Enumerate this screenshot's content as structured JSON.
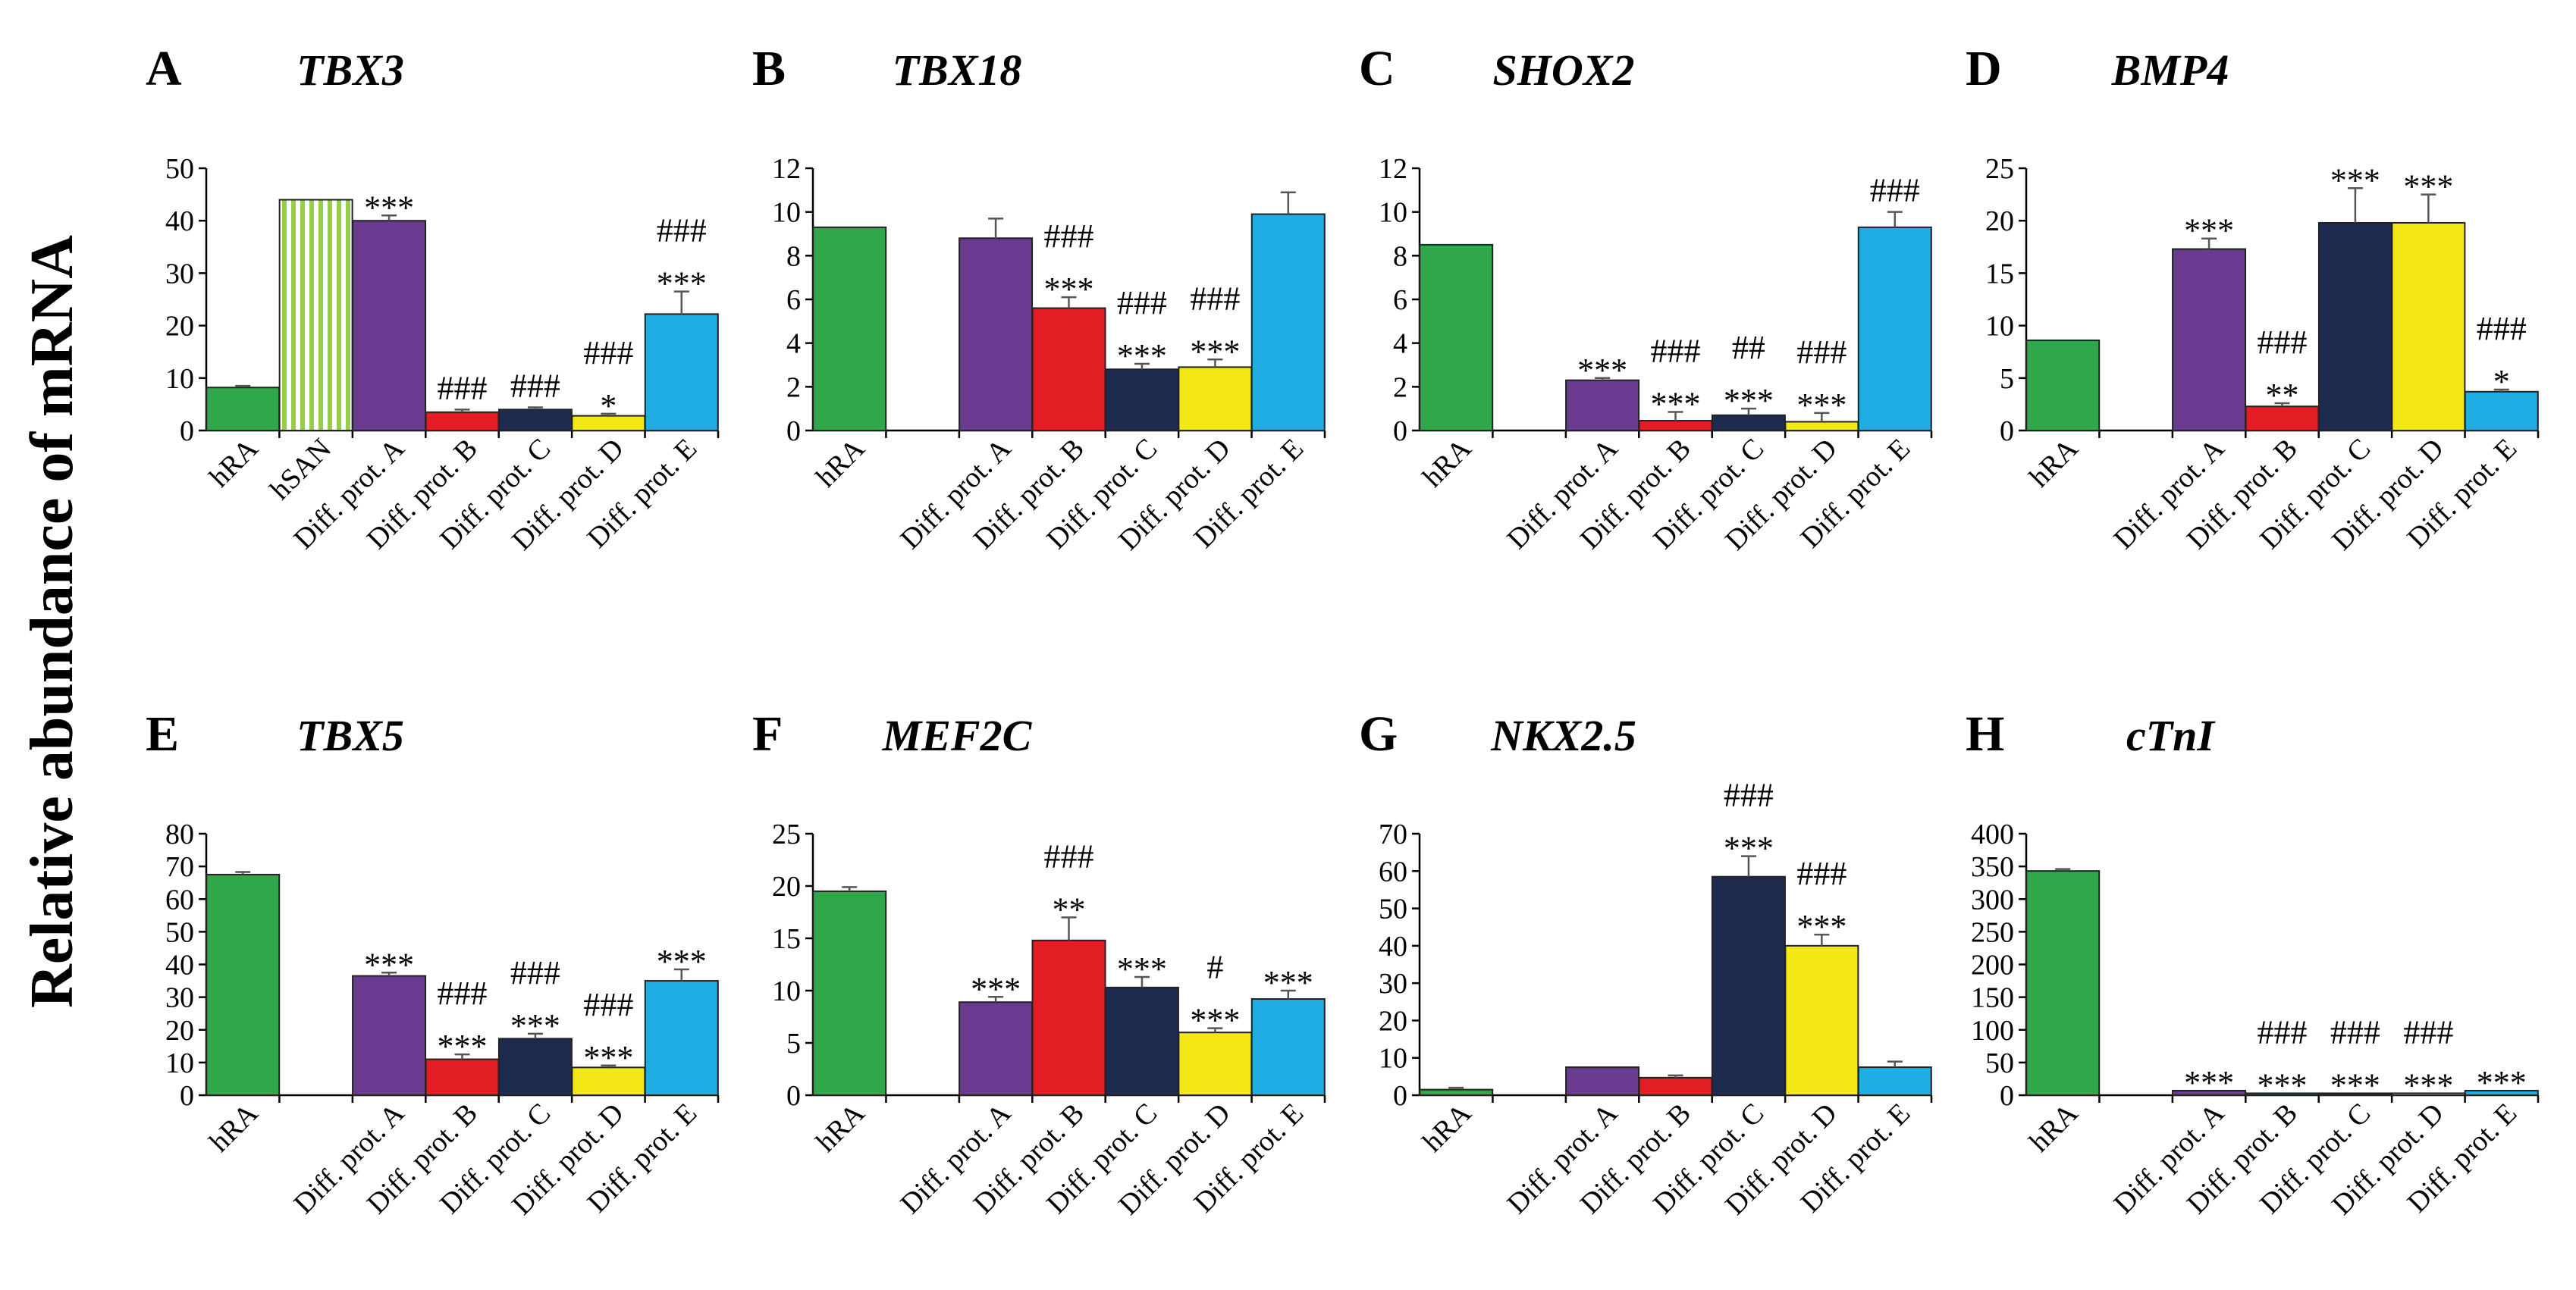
{
  "figure": {
    "y_axis_label": "Relative abundance of mRNA"
  },
  "colors": {
    "hRA": "#2ea84a",
    "hSAN_stripe": "#9acd46",
    "Diff. prot. A": "#683a90",
    "Diff. prot. B": "#e31d24",
    "Diff. prot. C": "#1f2a4f",
    "Diff. prot. D": "#f3e815",
    "Diff. prot. E": "#1fade4"
  },
  "chart_data": [
    {
      "type": "bar",
      "panel": "A",
      "title": "TBX3",
      "categories": [
        "hRA",
        "hSAN",
        "Diff. prot. A",
        "Diff. prot. B",
        "Diff. prot. C",
        "Diff. prot. D",
        "Diff. prot. E"
      ],
      "values": [
        8.2,
        44,
        40,
        3.5,
        4,
        2.8,
        22.2
      ],
      "errors": [
        0.3,
        0,
        1,
        0.5,
        0.4,
        0.4,
        4.3
      ],
      "annotations": [
        [],
        [],
        [
          "***"
        ],
        [
          "###"
        ],
        [
          "###"
        ],
        [
          "###",
          "*"
        ],
        [
          "###",
          "***"
        ]
      ],
      "ylim": [
        0,
        50
      ],
      "yticks": [
        0,
        10,
        20,
        30,
        40,
        50
      ],
      "xlabel": "",
      "ylabel": ""
    },
    {
      "type": "bar",
      "panel": "B",
      "title": "TBX18",
      "categories": [
        "hRA",
        "",
        "Diff. prot. A",
        "Diff. prot. B",
        "Diff. prot. C",
        "Diff. prot. D",
        "Diff. prot. E"
      ],
      "values": [
        9.3,
        null,
        8.8,
        5.6,
        2.8,
        2.9,
        9.9
      ],
      "errors": [
        0,
        0,
        0.9,
        0.5,
        0.25,
        0.35,
        1
      ],
      "annotations": [
        [],
        [],
        [],
        [
          "###",
          "***"
        ],
        [
          "###",
          "***"
        ],
        [
          "###",
          "***"
        ],
        []
      ],
      "ylim": [
        0,
        12
      ],
      "yticks": [
        0,
        2,
        4,
        6,
        8,
        10,
        12
      ],
      "xlabel": "",
      "ylabel": ""
    },
    {
      "type": "bar",
      "panel": "C",
      "title": "SHOX2",
      "categories": [
        "hRA",
        "",
        "Diff. prot. A",
        "Diff. prot. B",
        "Diff. prot. C",
        "Diff. prot. D",
        "Diff. prot. E"
      ],
      "values": [
        8.5,
        null,
        2.3,
        0.45,
        0.7,
        0.4,
        9.3
      ],
      "errors": [
        0,
        0,
        0.1,
        0.4,
        0.3,
        0.4,
        0.7
      ],
      "annotations": [
        [],
        [],
        [
          "***"
        ],
        [
          "###",
          "***"
        ],
        [
          "##",
          "***"
        ],
        [
          "###",
          "***"
        ],
        [
          "###"
        ]
      ],
      "ylim": [
        0,
        12
      ],
      "yticks": [
        0,
        2,
        4,
        6,
        8,
        10,
        12
      ],
      "xlabel": "",
      "ylabel": ""
    },
    {
      "type": "bar",
      "panel": "D",
      "title": "BMP4",
      "categories": [
        "hRA",
        "",
        "Diff. prot. A",
        "Diff. prot. B",
        "Diff. prot. C",
        "Diff. prot. D",
        "Diff. prot. E"
      ],
      "values": [
        8.6,
        null,
        17.3,
        2.3,
        19.8,
        19.8,
        3.7
      ],
      "errors": [
        0,
        0,
        1,
        0.3,
        3.3,
        2.7,
        0.2
      ],
      "annotations": [
        [],
        [],
        [
          "***"
        ],
        [
          "###",
          "**"
        ],
        [
          "***"
        ],
        [
          "***"
        ],
        [
          "###",
          "*"
        ]
      ],
      "ylim": [
        0,
        25
      ],
      "yticks": [
        0,
        5,
        10,
        15,
        20,
        25
      ],
      "xlabel": "",
      "ylabel": ""
    },
    {
      "type": "bar",
      "panel": "E",
      "title": "TBX5",
      "categories": [
        "hRA",
        "",
        "Diff. prot. A",
        "Diff. prot. B",
        "Diff. prot. C",
        "Diff. prot. D",
        "Diff. prot. E"
      ],
      "values": [
        67.5,
        null,
        36.5,
        11,
        17.3,
        8.5,
        35
      ],
      "errors": [
        0.8,
        0,
        1,
        1.5,
        1.5,
        0.6,
        3.5
      ],
      "annotations": [
        [],
        [],
        [
          "***"
        ],
        [
          "###",
          "***"
        ],
        [
          "###",
          "***"
        ],
        [
          "###",
          "***"
        ],
        [
          "***"
        ]
      ],
      "ylim": [
        0,
        80
      ],
      "yticks": [
        0,
        10,
        20,
        30,
        40,
        50,
        60,
        70,
        80
      ],
      "xlabel": "",
      "ylabel": ""
    },
    {
      "type": "bar",
      "panel": "F",
      "title": "MEF2C",
      "categories": [
        "hRA",
        "",
        "Diff. prot. A",
        "Diff. prot. B",
        "Diff. prot. C",
        "Diff. prot. D",
        "Diff. prot. E"
      ],
      "values": [
        19.5,
        null,
        8.9,
        14.8,
        10.3,
        6,
        9.2
      ],
      "errors": [
        0.4,
        0,
        0.5,
        2.2,
        1,
        0.4,
        0.8
      ],
      "annotations": [
        [],
        [],
        [
          "***"
        ],
        [
          "###",
          "**"
        ],
        [
          "***"
        ],
        [
          "#",
          "***"
        ],
        [
          "***"
        ]
      ],
      "ylim": [
        0,
        25
      ],
      "yticks": [
        0,
        5,
        10,
        15,
        20,
        25
      ],
      "xlabel": "",
      "ylabel": ""
    },
    {
      "type": "bar",
      "panel": "G",
      "title": "NKX2.5",
      "categories": [
        "hRA",
        "",
        "Diff. prot. A",
        "Diff. prot. B",
        "Diff. prot. C",
        "Diff. prot. D",
        "Diff. prot. E"
      ],
      "values": [
        1.5,
        null,
        7.5,
        4.7,
        58.5,
        40,
        7.5
      ],
      "errors": [
        0.5,
        0,
        0,
        0.6,
        5.5,
        3,
        1.5
      ],
      "annotations": [
        [],
        [],
        [],
        [],
        [
          "###",
          "***"
        ],
        [
          "###",
          "***"
        ],
        []
      ],
      "ylim": [
        0,
        70
      ],
      "yticks": [
        0,
        10,
        20,
        30,
        40,
        50,
        60,
        70
      ],
      "xlabel": "",
      "ylabel": ""
    },
    {
      "type": "bar",
      "panel": "H",
      "title": "cTnI",
      "categories": [
        "hRA",
        "",
        "Diff. prot. A",
        "Diff. prot. B",
        "Diff. prot. C",
        "Diff. prot. D",
        "Diff. prot. E"
      ],
      "values": [
        343,
        null,
        7,
        3,
        3,
        3,
        7
      ],
      "errors": [
        3,
        0,
        0,
        0,
        0,
        0,
        0
      ],
      "annotations": [
        [],
        [],
        [
          "***"
        ],
        [
          "###",
          "***"
        ],
        [
          "###",
          "***"
        ],
        [
          "###",
          "***"
        ],
        [
          "***"
        ]
      ],
      "ylim": [
        0,
        400
      ],
      "yticks": [
        0,
        50,
        100,
        150,
        200,
        250,
        300,
        350,
        400
      ],
      "xlabel": "",
      "ylabel": ""
    }
  ]
}
